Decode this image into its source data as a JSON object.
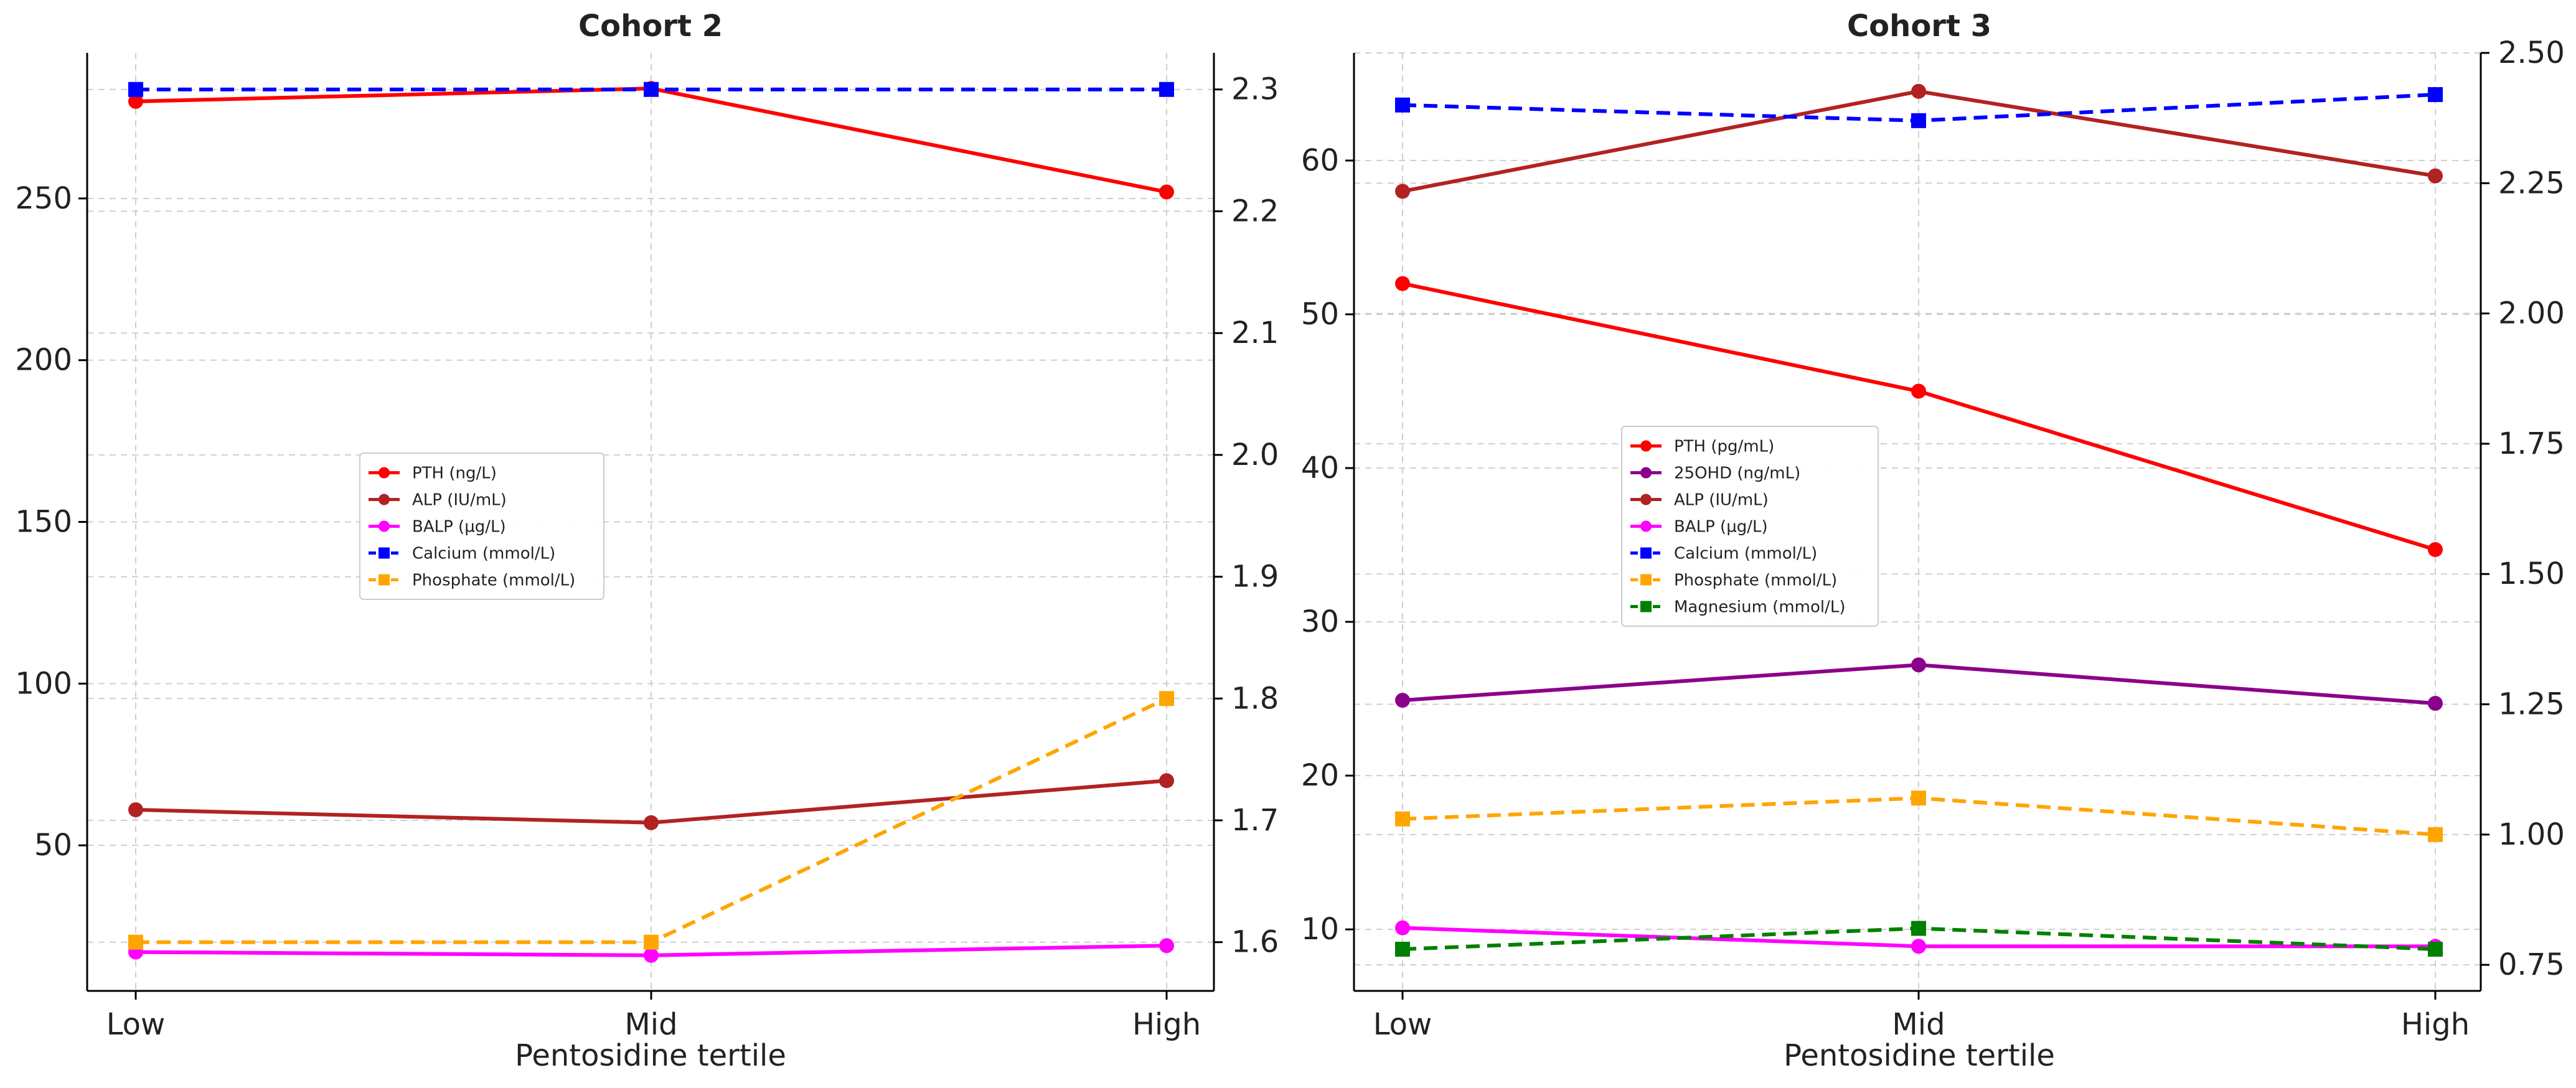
{
  "colors": {
    "PTH": "#ff0000",
    "25OHD": "#8b008b",
    "ALP": "#b22222",
    "BALP": "#ff00ff",
    "Calcium": "#0000ff",
    "Phosphate": "#ffa500",
    "Magnesium": "#008000"
  },
  "chart_data": [
    {
      "type": "line",
      "title": "Cohort 2",
      "xlabel": "Pentosidine tertile",
      "categories": [
        "Low",
        "Mid",
        "High"
      ],
      "left_axis": {
        "ylim": [
          5,
          295
        ],
        "ticks": [
          50,
          100,
          150,
          200,
          250
        ]
      },
      "right_axis": {
        "ylim": [
          1.56,
          2.33
        ],
        "ticks": [
          "1.6",
          "1.7",
          "1.8",
          "1.9",
          "2.0",
          "2.1",
          "2.2",
          "2.3"
        ]
      },
      "series": [
        {
          "name": "PTH (ng/L)",
          "key": "PTH",
          "axis": "left",
          "marker": "circle",
          "dashed": false,
          "values": [
            280,
            284,
            252
          ]
        },
        {
          "name": "ALP (IU/mL)",
          "key": "ALP",
          "axis": "left",
          "marker": "circle",
          "dashed": false,
          "values": [
            61,
            57,
            70
          ]
        },
        {
          "name": "BALP (µg/L)",
          "key": "BALP",
          "axis": "left",
          "marker": "circle",
          "dashed": false,
          "values": [
            17,
            16,
            19
          ]
        },
        {
          "name": "Calcium (mmol/L)",
          "key": "Calcium",
          "axis": "right",
          "marker": "square",
          "dashed": true,
          "values": [
            2.3,
            2.3,
            2.3
          ]
        },
        {
          "name": "Phosphate (mmol/L)",
          "key": "Phosphate",
          "axis": "right",
          "marker": "square",
          "dashed": true,
          "values": [
            1.6,
            1.6,
            1.8
          ]
        }
      ]
    },
    {
      "type": "line",
      "title": "Cohort 3",
      "xlabel": "Pentosidine tertile",
      "categories": [
        "Low",
        "Mid",
        "High"
      ],
      "left_axis": {
        "ylim": [
          6,
          67
        ],
        "ticks": [
          10,
          20,
          30,
          40,
          50,
          60
        ]
      },
      "right_axis": {
        "ylim": [
          0.7,
          2.5
        ],
        "ticks": [
          "0.75",
          "1.00",
          "1.25",
          "1.50",
          "1.75",
          "2.00",
          "2.25",
          "2.50"
        ]
      },
      "series": [
        {
          "name": "PTH (pg/mL)",
          "key": "PTH",
          "axis": "left",
          "marker": "circle",
          "dashed": false,
          "values": [
            52,
            45,
            34.7
          ]
        },
        {
          "name": "25OHD (ng/mL)",
          "key": "25OHD",
          "axis": "left",
          "marker": "circle",
          "dashed": false,
          "values": [
            24.9,
            27.2,
            24.7
          ]
        },
        {
          "name": "ALP (IU/mL)",
          "key": "ALP",
          "axis": "left",
          "marker": "circle",
          "dashed": false,
          "values": [
            58,
            64.5,
            59
          ]
        },
        {
          "name": "BALP (µg/L)",
          "key": "BALP",
          "axis": "left",
          "marker": "circle",
          "dashed": false,
          "values": [
            10.1,
            8.9,
            8.9
          ]
        },
        {
          "name": "Calcium (mmol/L)",
          "key": "Calcium",
          "axis": "right",
          "marker": "square",
          "dashed": true,
          "values": [
            2.4,
            2.37,
            2.42
          ]
        },
        {
          "name": "Phosphate (mmol/L)",
          "key": "Phosphate",
          "axis": "right",
          "marker": "square",
          "dashed": true,
          "values": [
            1.03,
            1.07,
            1.0
          ]
        },
        {
          "name": "Magnesium (mmol/L)",
          "key": "Magnesium",
          "axis": "right",
          "marker": "square",
          "dashed": true,
          "values": [
            0.78,
            0.82,
            0.78
          ]
        }
      ]
    }
  ]
}
